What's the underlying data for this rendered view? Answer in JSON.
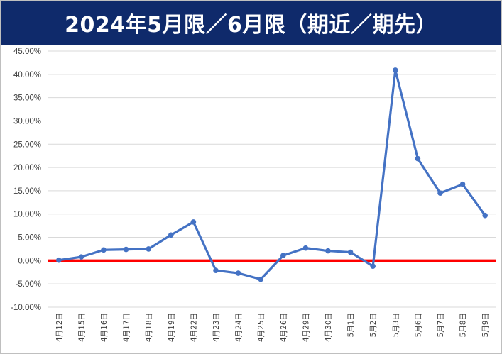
{
  "chart_data": {
    "type": "line",
    "title": "2024年5月限／6月限（期近／期先）",
    "xlabel": "",
    "ylabel": "",
    "ylim": [
      -0.1,
      0.45
    ],
    "y_tick_step": 0.05,
    "y_tick_labels": [
      "45.00%",
      "40.00%",
      "35.00%",
      "30.00%",
      "25.00%",
      "20.00%",
      "15.00%",
      "10.00%",
      "5.00%",
      "0.00%",
      "-5.00%",
      "-10.00%"
    ],
    "grid": true,
    "legend": "none",
    "categories": [
      "4月12日",
      "4月15日",
      "4月16日",
      "4月17日",
      "4月18日",
      "4月19日",
      "4月22日",
      "4月23日",
      "4月24日",
      "4月25日",
      "4月26日",
      "4月29日",
      "4月30日",
      "5月1日",
      "5月2日",
      "5月3日",
      "5月6日",
      "5月7日",
      "5月8日",
      "5月9日"
    ],
    "series": [
      {
        "values": [
          0.001,
          0.008,
          0.023,
          0.024,
          0.025,
          0.055,
          0.083,
          -0.021,
          -0.027,
          -0.04,
          0.011,
          0.027,
          0.021,
          0.018,
          -0.012,
          0.409,
          0.219,
          0.145,
          0.164,
          0.097
        ],
        "color": "#4472c4"
      }
    ],
    "reference_line": {
      "value": 0,
      "color": "#ff0000"
    }
  }
}
